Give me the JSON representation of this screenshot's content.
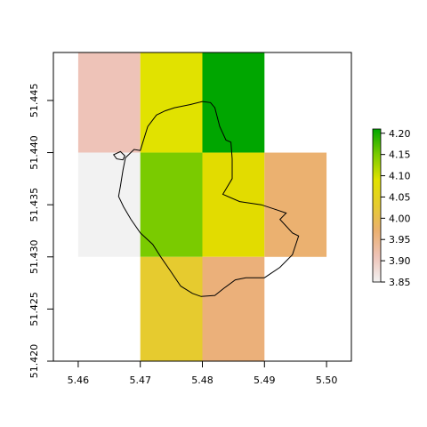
{
  "chart_data": {
    "type": "heatmap",
    "title": "",
    "xlabel": "",
    "ylabel": "",
    "xlim": [
      5.456,
      5.504
    ],
    "ylim": [
      51.42,
      51.4496
    ],
    "grid": false,
    "x_ticks": [
      {
        "value": 5.46,
        "label": "5.46"
      },
      {
        "value": 5.47,
        "label": "5.47"
      },
      {
        "value": 5.48,
        "label": "5.48"
      },
      {
        "value": 5.49,
        "label": "5.49"
      },
      {
        "value": 5.5,
        "label": "5.50"
      }
    ],
    "y_ticks": [
      {
        "value": 51.42,
        "label": "51.420"
      },
      {
        "value": 51.425,
        "label": "51.425"
      },
      {
        "value": 51.43,
        "label": "51.430"
      },
      {
        "value": 51.435,
        "label": "51.435"
      },
      {
        "value": 51.44,
        "label": "51.440"
      },
      {
        "value": 51.445,
        "label": "51.445"
      }
    ],
    "cells": [
      {
        "x0": 5.46,
        "x1": 5.47,
        "y0": 51.44,
        "y1": 51.45,
        "value": 3.89,
        "color": "#EEC3B8"
      },
      {
        "x0": 5.47,
        "x1": 5.48,
        "y0": 51.44,
        "y1": 51.45,
        "value": 4.04,
        "color": "#E1E200"
      },
      {
        "x0": 5.48,
        "x1": 5.49,
        "y0": 51.44,
        "y1": 51.45,
        "value": 4.19,
        "color": "#00A600"
      },
      {
        "x0": 5.46,
        "x1": 5.47,
        "y0": 51.43,
        "y1": 51.44,
        "value": 3.85,
        "color": "#F2F2F2"
      },
      {
        "x0": 5.47,
        "x1": 5.48,
        "y0": 51.43,
        "y1": 51.44,
        "value": 4.11,
        "color": "#7ACB00"
      },
      {
        "x0": 5.48,
        "x1": 5.49,
        "y0": 51.43,
        "y1": 51.44,
        "value": 4.03,
        "color": "#E2DC00"
      },
      {
        "x0": 5.49,
        "x1": 5.5,
        "y0": 51.43,
        "y1": 51.44,
        "value": 3.95,
        "color": "#EBB170"
      },
      {
        "x0": 5.47,
        "x1": 5.48,
        "y0": 51.42,
        "y1": 51.43,
        "value": 4.01,
        "color": "#E6CB2F"
      },
      {
        "x0": 5.48,
        "x1": 5.49,
        "y0": 51.42,
        "y1": 51.43,
        "value": 3.95,
        "color": "#EBB07A"
      }
    ],
    "boundary": [
      [
        5.47,
        51.4402
      ],
      [
        5.4712,
        51.4425
      ],
      [
        5.4726,
        51.4436
      ],
      [
        5.474,
        51.444
      ],
      [
        5.4755,
        51.4443
      ],
      [
        5.478,
        51.4446
      ],
      [
        5.48,
        51.4449
      ],
      [
        5.4813,
        51.4448
      ],
      [
        5.482,
        51.4443
      ],
      [
        5.4828,
        51.4425
      ],
      [
        5.4838,
        51.4412
      ],
      [
        5.4846,
        51.441
      ],
      [
        5.4848,
        51.4394
      ],
      [
        5.4848,
        51.4375
      ],
      [
        5.4833,
        51.436
      ],
      [
        5.486,
        51.4353
      ],
      [
        5.4895,
        51.435
      ],
      [
        5.4915,
        51.4346
      ],
      [
        5.4935,
        51.4342
      ],
      [
        5.4925,
        51.4336
      ],
      [
        5.4945,
        51.4323
      ],
      [
        5.4955,
        51.432
      ],
      [
        5.4945,
        51.4302
      ],
      [
        5.4925,
        51.429
      ],
      [
        5.49,
        51.428
      ],
      [
        5.487,
        51.428
      ],
      [
        5.4853,
        51.4278
      ],
      [
        5.4835,
        51.427
      ],
      [
        5.482,
        51.4263
      ],
      [
        5.4798,
        51.4262
      ],
      [
        5.4784,
        51.4265
      ],
      [
        5.4765,
        51.4272
      ],
      [
        5.4748,
        51.4287
      ],
      [
        5.4733,
        51.43
      ],
      [
        5.472,
        51.4312
      ],
      [
        5.47,
        51.4323
      ],
      [
        5.4685,
        51.4336
      ],
      [
        5.4673,
        51.4348
      ],
      [
        5.4665,
        51.4358
      ],
      [
        5.4668,
        51.4368
      ],
      [
        5.4672,
        51.4383
      ],
      [
        5.4676,
        51.4395
      ],
      [
        5.469,
        51.4403
      ],
      [
        5.47,
        51.4402
      ]
    ],
    "islet": [
      [
        5.4657,
        51.4398
      ],
      [
        5.4668,
        51.4401
      ],
      [
        5.4675,
        51.4397
      ],
      [
        5.4672,
        51.4393
      ],
      [
        5.4662,
        51.4394
      ],
      [
        5.4657,
        51.4398
      ]
    ],
    "legend": {
      "placement": "right",
      "min": 3.85,
      "max": 4.21,
      "ticks": [
        {
          "value": 3.85,
          "label": "3.85"
        },
        {
          "value": 3.9,
          "label": "3.90"
        },
        {
          "value": 3.95,
          "label": "3.95"
        },
        {
          "value": 4.0,
          "label": "4.00"
        },
        {
          "value": 4.05,
          "label": "4.05"
        },
        {
          "value": 4.1,
          "label": "4.10"
        },
        {
          "value": 4.15,
          "label": "4.15"
        },
        {
          "value": 4.2,
          "label": "4.20"
        }
      ],
      "gradient": [
        "#F2F2F2",
        "#EEC3B8",
        "#EBB070",
        "#E6CB2F",
        "#E1E200",
        "#7ACB00",
        "#00A600"
      ]
    }
  }
}
